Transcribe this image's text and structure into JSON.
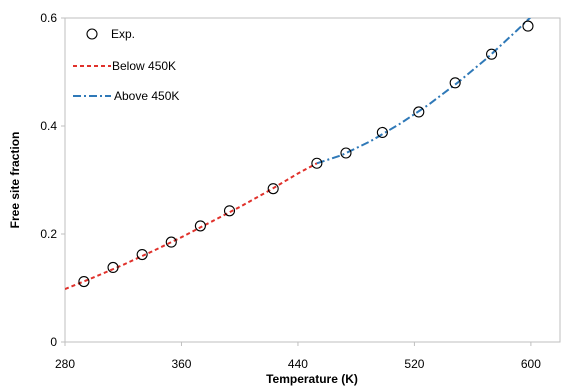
{
  "chart_data": {
    "type": "scatter",
    "title": "",
    "xlabel": "Temperature (K)",
    "ylabel": "Free site fraction",
    "xlim": [
      280,
      620
    ],
    "ylim": [
      0,
      0.6
    ],
    "xticks": [
      280,
      360,
      440,
      520,
      600
    ],
    "yticks": [
      0,
      0.2,
      0.4,
      0.6
    ],
    "xtick_labels": [
      "280",
      "360",
      "440",
      "520",
      "600"
    ],
    "ytick_labels": [
      "0",
      "0.2",
      "0.4",
      "0.6"
    ],
    "grid": false,
    "legend": "top-left",
    "series": [
      {
        "name": "Exp.",
        "kind": "markers",
        "marker": "open-circle",
        "color": "#000000",
        "x": [
          293,
          313,
          333,
          353,
          373,
          393,
          423,
          453,
          473,
          498,
          523,
          548,
          573,
          598
        ],
        "y": [
          0.112,
          0.138,
          0.162,
          0.185,
          0.215,
          0.243,
          0.284,
          0.331,
          0.35,
          0.388,
          0.426,
          0.48,
          0.533,
          0.585
        ]
      },
      {
        "name": "Below 450K",
        "kind": "line",
        "dash": "dashed",
        "color": "#e0312b",
        "x": [
          280,
          300,
          320,
          340,
          360,
          380,
          400,
          420,
          440,
          453
        ],
        "y": [
          0.098,
          0.12,
          0.143,
          0.168,
          0.194,
          0.222,
          0.25,
          0.28,
          0.312,
          0.331
        ]
      },
      {
        "name": "Above 450K",
        "kind": "line",
        "dash": "dash-dot",
        "color": "#2f79b8",
        "x": [
          453,
          470,
          490,
          510,
          530,
          550,
          570,
          590,
          605
        ],
        "y": [
          0.331,
          0.346,
          0.372,
          0.404,
          0.44,
          0.481,
          0.526,
          0.576,
          0.615
        ]
      }
    ]
  }
}
